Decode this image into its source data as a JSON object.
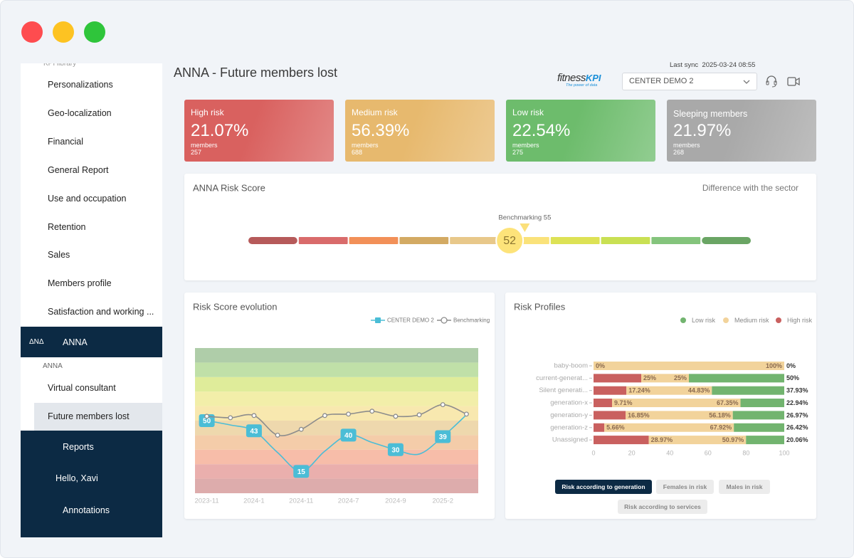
{
  "sidebar": {
    "section_label": "KPI library",
    "items": [
      "Personalizations",
      "Geo-localization",
      "Financial",
      "General Report",
      "Use and occupation",
      "Retention",
      "Sales",
      "Members profile",
      "Satisfaction and working ..."
    ],
    "anna": {
      "logo": "ΔNΔ",
      "label": "ANNA",
      "group_label": "ANNA",
      "items": [
        "Virtual consultant",
        "Future members lost"
      ],
      "active_item": 1
    },
    "bottom_items": [
      "Reports",
      "Hello, Xavi",
      "Annotations"
    ]
  },
  "header": {
    "title": "ANNA - Future members lost",
    "last_sync_label": "Last sync",
    "last_sync": "2025-03-24 08:55",
    "logo": {
      "brand": "fitness",
      "brand_accent": "KPI",
      "tagline": "The power of data"
    },
    "center_select": "CENTER DEMO 2"
  },
  "kpi_cards": [
    {
      "label": "High risk",
      "value": "21.07%",
      "unit": "members",
      "count": "257",
      "color": "#d9615f"
    },
    {
      "label": "Medium risk",
      "value": "56.39%",
      "unit": "members",
      "count": "688",
      "color": "#e7b96e"
    },
    {
      "label": "Low risk",
      "value": "22.54%",
      "unit": "members",
      "count": "275",
      "color": "#6dbc6c"
    },
    {
      "label": "Sleeping members",
      "value": "21.97%",
      "unit": "members",
      "count": "268",
      "color": "#a9a9a9"
    }
  ],
  "risk_score": {
    "title": "ANNA Risk Score",
    "right_label": "Difference with the sector",
    "chart_data": {
      "type": "gauge",
      "value": 52,
      "benchmark": 55,
      "benchmark_label": "Benchmarking 55",
      "xlim": [
        0,
        100
      ],
      "segment_colors": [
        "#b65a5a",
        "#d96b6b",
        "#f29058",
        "#d3aa63",
        "#e8c88a",
        "#fae27a",
        "#dde255",
        "#c9e053",
        "#84c47c",
        "#6aa564"
      ]
    }
  },
  "risk_score_evolution": {
    "title": "Risk Score evolution",
    "chart_data": {
      "type": "line",
      "categories": [
        "2023-11",
        null,
        "2024-1",
        null,
        "2024-11",
        null,
        "2024-7",
        null,
        "2024-9",
        null,
        "2025-2",
        null
      ],
      "ylim": [
        0,
        100
      ],
      "band_colors": [
        "#d9a3a3",
        "#e8a6a4",
        "#f6b6a0",
        "#f3c7a0",
        "#ecd4a4",
        "#f7e6a6",
        "#f1eca0",
        "#dcea8f",
        "#b9dd9e",
        "#a6c8a0"
      ],
      "legend": "top-right",
      "series": [
        {
          "name": "CENTER DEMO 2",
          "color": "#4bbdd6",
          "values": [
            50,
            47,
            43,
            28,
            15,
            29,
            40,
            35,
            30,
            27,
            39,
            54
          ],
          "value_labels": [
            "50",
            null,
            "43",
            null,
            "15",
            null,
            "40",
            null,
            "30",
            null,
            "39",
            null
          ]
        },
        {
          "name": "Benchmarking",
          "color": "#8c8c8c",
          "values": [
            53,
            52,
            53.5,
            40,
            44,
            53.5,
            54.5,
            56.5,
            53,
            54,
            61,
            54.5
          ]
        }
      ]
    }
  },
  "risk_profiles": {
    "title": "Risk Profiles",
    "chart_data": {
      "type": "bar",
      "orientation": "horizontal",
      "stacked": true,
      "legend": "top-right",
      "categories": [
        "baby-boom",
        "current-generat...",
        "Silent generati...",
        "generation-x",
        "generation-y",
        "generation-z",
        "Unassigned"
      ],
      "xlim": [
        0,
        100
      ],
      "xticks": [
        0,
        20,
        40,
        60,
        80,
        100
      ],
      "series": [
        {
          "name": "High risk",
          "color": "#c9605f",
          "values": [
            0,
            25,
            17.24,
            9.71,
            16.85,
            5.66,
            28.97
          ],
          "value_labels": [
            "0%",
            "25%",
            "17.24%",
            "9.71%",
            "16.85%",
            "5.66%",
            "28.97%"
          ]
        },
        {
          "name": "Medium risk",
          "color": "#f2d39b",
          "values": [
            100,
            25,
            44.83,
            67.35,
            56.18,
            67.92,
            50.97
          ],
          "value_labels": [
            "100%",
            "25%",
            "44.83%",
            "67.35%",
            "56.18%",
            "67.92%",
            "50.97%"
          ]
        },
        {
          "name": "Low risk",
          "color": "#72b46f",
          "values": [
            0,
            50,
            37.93,
            22.94,
            26.97,
            26.42,
            20.06
          ],
          "value_labels": [
            "0%",
            "50%",
            "37.93%",
            "22.94%",
            "26.97%",
            "26.42%",
            "20.06%"
          ]
        }
      ]
    },
    "tabs": [
      "Risk according to generation",
      "Females in risk",
      "Males in risk",
      "Risk according to services"
    ],
    "active_tab": 0
  }
}
